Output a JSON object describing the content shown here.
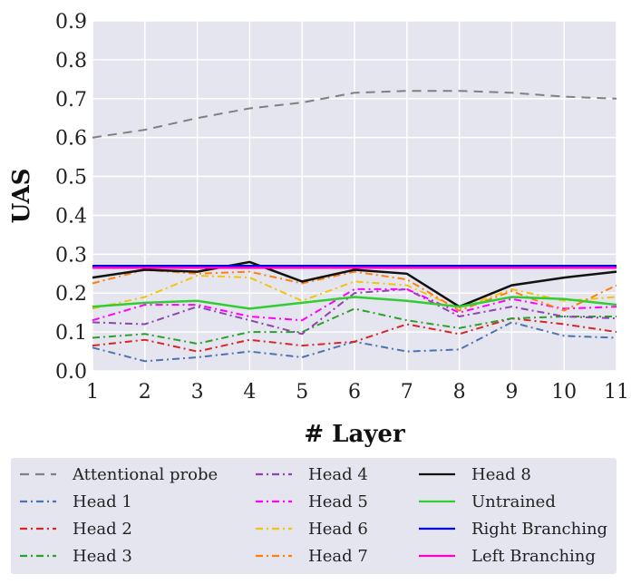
{
  "chart_data": {
    "type": "line",
    "title": "",
    "xlabel": "# Layer",
    "ylabel": "UAS",
    "xlim": [
      1,
      11
    ],
    "ylim": [
      0.0,
      0.9
    ],
    "x_ticks": [
      "1",
      "2",
      "3",
      "4",
      "5",
      "6",
      "7",
      "8",
      "9",
      "10",
      "11"
    ],
    "y_ticks": [
      "0.0",
      "0.1",
      "0.2",
      "0.3",
      "0.4",
      "0.5",
      "0.6",
      "0.7",
      "0.8",
      "0.9"
    ],
    "grid": true,
    "legend_position": "below",
    "x": [
      1,
      2,
      3,
      4,
      5,
      6,
      7,
      8,
      9,
      10,
      11
    ],
    "series": [
      {
        "name": "Attentional probe",
        "color": "#808080",
        "dash": "dashed",
        "values": [
          0.6,
          0.62,
          0.65,
          0.675,
          0.69,
          0.715,
          0.72,
          0.72,
          0.715,
          0.705,
          0.7
        ]
      },
      {
        "name": "Head 1",
        "color": "#4c72b0",
        "dash": "dashdot",
        "values": [
          0.06,
          0.025,
          0.035,
          0.05,
          0.035,
          0.075,
          0.05,
          0.055,
          0.125,
          0.09,
          0.085
        ]
      },
      {
        "name": "Head 2",
        "color": "#d62728",
        "dash": "dashdot",
        "values": [
          0.065,
          0.08,
          0.05,
          0.08,
          0.065,
          0.075,
          0.12,
          0.095,
          0.135,
          0.12,
          0.1
        ]
      },
      {
        "name": "Head 3",
        "color": "#2ca02c",
        "dash": "dashdot",
        "values": [
          0.085,
          0.095,
          0.07,
          0.1,
          0.1,
          0.16,
          0.13,
          0.11,
          0.135,
          0.14,
          0.14
        ]
      },
      {
        "name": "Head 4",
        "color": "#8e44ad",
        "dash": "dashdot",
        "values": [
          0.125,
          0.12,
          0.165,
          0.13,
          0.095,
          0.2,
          0.21,
          0.14,
          0.165,
          0.14,
          0.135
        ]
      },
      {
        "name": "Head 5",
        "color": "#ff00ff",
        "dash": "dashdot",
        "values": [
          0.13,
          0.17,
          0.17,
          0.14,
          0.13,
          0.21,
          0.21,
          0.15,
          0.185,
          0.16,
          0.165
        ]
      },
      {
        "name": "Head 6",
        "color": "#f1c40f",
        "dash": "dashdot",
        "values": [
          0.16,
          0.19,
          0.245,
          0.24,
          0.18,
          0.23,
          0.22,
          0.16,
          0.21,
          0.18,
          0.19
        ]
      },
      {
        "name": "Head 7",
        "color": "#ff7f0e",
        "dash": "dashdot",
        "values": [
          0.225,
          0.26,
          0.25,
          0.255,
          0.225,
          0.255,
          0.235,
          0.155,
          0.205,
          0.155,
          0.22
        ]
      },
      {
        "name": "Head 8",
        "color": "#111111",
        "dash": "solid",
        "values": [
          0.24,
          0.26,
          0.255,
          0.28,
          0.23,
          0.26,
          0.25,
          0.165,
          0.22,
          0.24,
          0.255
        ]
      },
      {
        "name": "Untrained",
        "color": "#32cd32",
        "dash": "solid",
        "values": [
          0.165,
          0.175,
          0.18,
          0.16,
          0.175,
          0.19,
          0.18,
          0.165,
          0.19,
          0.185,
          0.17
        ]
      },
      {
        "name": "Right Branching",
        "color": "#0000dd",
        "dash": "solid",
        "values": [
          0.27,
          0.27,
          0.27,
          0.27,
          0.27,
          0.27,
          0.27,
          0.27,
          0.27,
          0.27,
          0.27
        ]
      },
      {
        "name": "Left Branching",
        "color": "#ff00cc",
        "dash": "solid",
        "values": [
          0.265,
          0.265,
          0.265,
          0.265,
          0.265,
          0.265,
          0.265,
          0.265,
          0.265,
          0.265,
          0.265
        ]
      }
    ]
  },
  "colors": {
    "plot_background": "#e5e5ef",
    "grid": "#ffffff",
    "legend_background": "#e5e5ef"
  }
}
